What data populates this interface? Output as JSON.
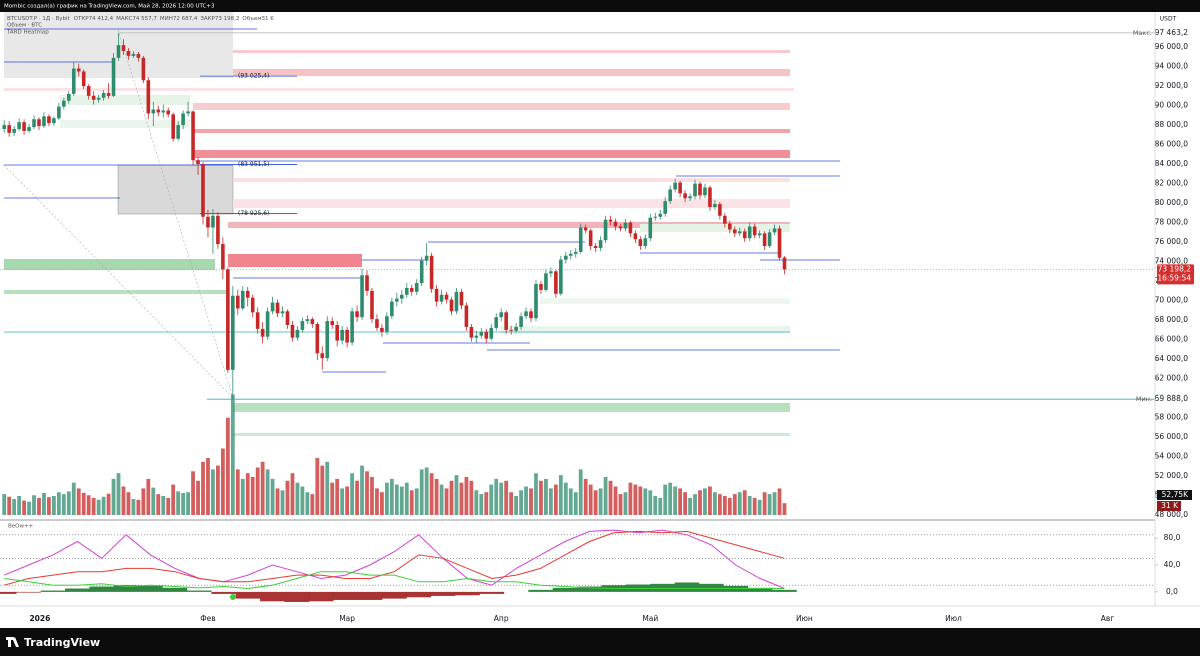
{
  "header": {
    "credit": "Mombic создал(а) график на TradingView.com, Май 28, 2026 12:00 UTC+3",
    "symbol": "BTCUSDT.P · 1Д · Bybit",
    "ohlc": [
      {
        "label": "ОТКР",
        "value": "74 412,4"
      },
      {
        "label": "МАКС",
        "value": "74 557,7"
      },
      {
        "label": "МИН",
        "value": "72 687,4"
      },
      {
        "label": "ЗАКР",
        "value": "73 198,2"
      },
      {
        "label": "Объем",
        "value": "31 K"
      }
    ],
    "indicators": [
      "Объем · BTC",
      "TARD Heatmap"
    ],
    "brand": "TradingView"
  },
  "chart_data": {
    "type": "candlestick",
    "currency": "USDT",
    "up_color": "#2e8b6e",
    "down_color": "#c62828",
    "ylim": [
      47500,
      99600
    ],
    "yticks": [
      {
        "value": 48000,
        "label": "48 000,0"
      },
      {
        "value": 50000,
        "label": "50 000,0"
      },
      {
        "value": 52000,
        "label": "52 000,0"
      },
      {
        "value": 54000,
        "label": "54 000,0"
      },
      {
        "value": 56000,
        "label": "56 000,0"
      },
      {
        "value": 58000,
        "label": "58 000,0"
      },
      {
        "value": 60000,
        "label": "60 000,0"
      },
      {
        "value": 62000,
        "label": "62 000,0"
      },
      {
        "value": 64000,
        "label": "64 000,0"
      },
      {
        "value": 66000,
        "label": "66 000,0"
      },
      {
        "value": 68000,
        "label": "68 000,0"
      },
      {
        "value": 70000,
        "label": "70 000,0"
      },
      {
        "value": 72000,
        "label": "72 000,0"
      },
      {
        "value": 74000,
        "label": "74 000,0"
      },
      {
        "value": 76000,
        "label": "76 000,0"
      },
      {
        "value": 78000,
        "label": "78 000,0"
      },
      {
        "value": 80000,
        "label": "80 000,0"
      },
      {
        "value": 82000,
        "label": "82 000,0"
      },
      {
        "value": 84000,
        "label": "84 000,0"
      },
      {
        "value": 86000,
        "label": "86 000,0"
      },
      {
        "value": 88000,
        "label": "88 000,0"
      },
      {
        "value": 90000,
        "label": "90 000,0"
      },
      {
        "value": 92000,
        "label": "92 000,0"
      },
      {
        "value": 94000,
        "label": "94 000,0"
      },
      {
        "value": 96000,
        "label": "96 000,0"
      }
    ],
    "time_labels": [
      "2026",
      "Фев",
      "Мар",
      "Апр",
      "Май",
      "Июн",
      "Июл",
      "Авг"
    ],
    "levels": [
      {
        "value": 93025.4,
        "label": "(93 025,4)"
      },
      {
        "value": 83951.5,
        "label": "(83 951,5)"
      },
      {
        "value": 78925.6,
        "label": "(78 925,6)"
      }
    ],
    "extremes": [
      {
        "name": "Макс.",
        "value": 97463.2,
        "label": "97 463,2"
      },
      {
        "name": "Мин.",
        "value": 59888,
        "label": "59 888,0"
      }
    ],
    "last_price": {
      "value": 73198.2,
      "label": "73 198,2",
      "countdown": "16:59:54"
    },
    "volume_ma_label": "52,75K",
    "volume_label": "31 K",
    "candles": [
      [
        87600,
        88500,
        87200,
        88000
      ],
      [
        88000,
        88400,
        86800,
        87200
      ],
      [
        87200,
        87900,
        86900,
        87600
      ],
      [
        87600,
        88700,
        87400,
        88300
      ],
      [
        88300,
        88600,
        87000,
        87400
      ],
      [
        87400,
        88100,
        87200,
        87800
      ],
      [
        87800,
        89000,
        87600,
        88600
      ],
      [
        88600,
        88800,
        87500,
        87900
      ],
      [
        87900,
        89300,
        87700,
        88900
      ],
      [
        88900,
        89100,
        87900,
        88200
      ],
      [
        88200,
        88900,
        87900,
        88700
      ],
      [
        88700,
        90300,
        88500,
        89900
      ],
      [
        89900,
        90800,
        89600,
        90500
      ],
      [
        90500,
        91500,
        90200,
        91200
      ],
      [
        91200,
        94500,
        91000,
        93800
      ],
      [
        93800,
        94300,
        93000,
        93500
      ],
      [
        93500,
        93700,
        91700,
        92000
      ],
      [
        92000,
        92200,
        90600,
        91000
      ],
      [
        91000,
        91500,
        90100,
        90600
      ],
      [
        90600,
        91100,
        90300,
        90800
      ],
      [
        90800,
        91600,
        90500,
        91300
      ],
      [
        91300,
        92300,
        90700,
        91000
      ],
      [
        91000,
        95400,
        90900,
        94900
      ],
      [
        94900,
        97463.2,
        94600,
        96200
      ],
      [
        96200,
        96800,
        95200,
        95600
      ],
      [
        95600,
        95900,
        94700,
        95100
      ],
      [
        95100,
        95600,
        94900,
        95300
      ],
      [
        95300,
        95500,
        94500,
        94900
      ],
      [
        94900,
        95100,
        92300,
        92600
      ],
      [
        92600,
        92900,
        88600,
        89200
      ],
      [
        89200,
        90400,
        87900,
        89600
      ],
      [
        89600,
        90000,
        88900,
        89300
      ],
      [
        89300,
        90100,
        88800,
        89500
      ],
      [
        89500,
        89800,
        88800,
        89100
      ],
      [
        89100,
        89300,
        86300,
        86600
      ],
      [
        86600,
        88400,
        86400,
        88000
      ],
      [
        88000,
        89500,
        87600,
        89200
      ],
      [
        89200,
        90400,
        88900,
        89400
      ],
      [
        89400,
        89500,
        83900,
        84400
      ],
      [
        84400,
        84700,
        82900,
        84000
      ],
      [
        84000,
        84200,
        77800,
        78600
      ],
      [
        78600,
        79300,
        76500,
        77500
      ],
      [
        77500,
        79400,
        74800,
        78700
      ],
      [
        78700,
        79100,
        75300,
        75800
      ],
      [
        75800,
        76500,
        72200,
        73200
      ],
      [
        73200,
        73400,
        62600,
        62900
      ],
      [
        62900,
        71500,
        59888,
        70500
      ],
      [
        70500,
        71100,
        68500,
        69200
      ],
      [
        69200,
        71500,
        69000,
        71000
      ],
      [
        71000,
        71400,
        69400,
        70300
      ],
      [
        70300,
        70600,
        68300,
        68800
      ],
      [
        68800,
        69300,
        66600,
        67100
      ],
      [
        67100,
        67800,
        65600,
        66300
      ],
      [
        66300,
        69300,
        66000,
        68900
      ],
      [
        68900,
        70400,
        68600,
        69800
      ],
      [
        69800,
        70100,
        68300,
        68700
      ],
      [
        68700,
        69400,
        68300,
        68900
      ],
      [
        68900,
        69100,
        67100,
        67500
      ],
      [
        67500,
        67900,
        65800,
        66200
      ],
      [
        66200,
        67400,
        65900,
        67000
      ],
      [
        67000,
        68300,
        66700,
        67900
      ],
      [
        67900,
        68500,
        67600,
        68100
      ],
      [
        68100,
        68300,
        67200,
        67600
      ],
      [
        67600,
        67800,
        63900,
        64600
      ],
      [
        64600,
        65300,
        62900,
        64100
      ],
      [
        64100,
        68400,
        63800,
        67900
      ],
      [
        67900,
        68300,
        67100,
        67500
      ],
      [
        67500,
        67900,
        65300,
        65900
      ],
      [
        65900,
        67400,
        65500,
        67000
      ],
      [
        67000,
        67300,
        65200,
        65700
      ],
      [
        65700,
        69300,
        65400,
        68900
      ],
      [
        68900,
        69500,
        67800,
        68300
      ],
      [
        68300,
        73300,
        68000,
        72600
      ],
      [
        72600,
        73100,
        70500,
        71000
      ],
      [
        71000,
        71300,
        67700,
        68100
      ],
      [
        68100,
        68600,
        66900,
        67200
      ],
      [
        67200,
        67600,
        66300,
        66800
      ],
      [
        66800,
        68800,
        66500,
        68400
      ],
      [
        68400,
        70300,
        68100,
        69900
      ],
      [
        69900,
        70800,
        69400,
        70200
      ],
      [
        70200,
        71100,
        69700,
        70600
      ],
      [
        70600,
        71800,
        70300,
        71300
      ],
      [
        71300,
        71600,
        70500,
        70900
      ],
      [
        70900,
        72200,
        70600,
        71800
      ],
      [
        71800,
        74500,
        71500,
        74100
      ],
      [
        74100,
        75900,
        73600,
        74600
      ],
      [
        74600,
        74900,
        70800,
        71200
      ],
      [
        71200,
        71600,
        69400,
        69900
      ],
      [
        69900,
        71100,
        69600,
        70600
      ],
      [
        70600,
        70900,
        69700,
        70100
      ],
      [
        70100,
        70400,
        68500,
        68900
      ],
      [
        68900,
        71300,
        68600,
        70900
      ],
      [
        70900,
        71200,
        69100,
        69500
      ],
      [
        69500,
        69800,
        66900,
        67300
      ],
      [
        67300,
        67600,
        65800,
        66200
      ],
      [
        66200,
        66900,
        65700,
        66400
      ],
      [
        66400,
        67200,
        66100,
        66800
      ],
      [
        66800,
        67100,
        65600,
        66100
      ],
      [
        66100,
        67600,
        65900,
        67200
      ],
      [
        67200,
        68700,
        66900,
        68300
      ],
      [
        68300,
        69200,
        67900,
        68800
      ],
      [
        68800,
        69000,
        66600,
        67000
      ],
      [
        67000,
        67400,
        66500,
        66900
      ],
      [
        66900,
        67700,
        66700,
        67300
      ],
      [
        67300,
        68800,
        67000,
        68400
      ],
      [
        68400,
        69300,
        68100,
        68900
      ],
      [
        68900,
        69200,
        67800,
        68200
      ],
      [
        68200,
        72100,
        67900,
        71700
      ],
      [
        71700,
        72000,
        70700,
        71100
      ],
      [
        71100,
        73200,
        70900,
        72800
      ],
      [
        72800,
        73400,
        72400,
        73000
      ],
      [
        73000,
        73200,
        70300,
        70700
      ],
      [
        70700,
        74600,
        70500,
        74200
      ],
      [
        74200,
        75000,
        73800,
        74600
      ],
      [
        74600,
        75200,
        74200,
        74800
      ],
      [
        74800,
        75400,
        74400,
        75000
      ],
      [
        75000,
        77900,
        74800,
        77500
      ],
      [
        77500,
        77800,
        76900,
        77200
      ],
      [
        77200,
        77400,
        75200,
        75600
      ],
      [
        75600,
        75900,
        75000,
        75400
      ],
      [
        75400,
        76600,
        75100,
        76200
      ],
      [
        76200,
        78700,
        75900,
        78300
      ],
      [
        78300,
        78700,
        77700,
        78100
      ],
      [
        78100,
        78400,
        77200,
        77600
      ],
      [
        77600,
        77900,
        77100,
        77400
      ],
      [
        77400,
        78400,
        77100,
        78000
      ],
      [
        78000,
        78200,
        76500,
        76900
      ],
      [
        76900,
        77200,
        75900,
        76300
      ],
      [
        76300,
        76600,
        75200,
        75600
      ],
      [
        75600,
        76800,
        75300,
        76400
      ],
      [
        76400,
        78900,
        76100,
        78500
      ],
      [
        78500,
        79000,
        78200,
        78600
      ],
      [
        78600,
        79300,
        78300,
        78900
      ],
      [
        78900,
        80600,
        78600,
        80200
      ],
      [
        80200,
        81800,
        79900,
        81400
      ],
      [
        81400,
        82500,
        81100,
        82100
      ],
      [
        82100,
        82300,
        80600,
        81000
      ],
      [
        81000,
        81300,
        80100,
        80500
      ],
      [
        80500,
        81000,
        80200,
        80700
      ],
      [
        80700,
        82400,
        80400,
        82000
      ],
      [
        82000,
        82200,
        80400,
        80800
      ],
      [
        80800,
        82000,
        80500,
        81600
      ],
      [
        81600,
        81800,
        79200,
        79600
      ],
      [
        79600,
        80300,
        79300,
        79900
      ],
      [
        79900,
        80100,
        78300,
        78700
      ],
      [
        78700,
        79000,
        77500,
        77900
      ],
      [
        77900,
        78200,
        76900,
        77300
      ],
      [
        77300,
        77600,
        76500,
        76900
      ],
      [
        76900,
        77500,
        76600,
        77100
      ],
      [
        77100,
        77400,
        76000,
        76400
      ],
      [
        76400,
        78000,
        76100,
        77600
      ],
      [
        77600,
        77900,
        76400,
        76700
      ],
      [
        76700,
        77200,
        76400,
        76900
      ],
      [
        76900,
        77100,
        75200,
        75600
      ],
      [
        75600,
        77300,
        75400,
        77000
      ],
      [
        77000,
        77800,
        76700,
        77400
      ],
      [
        77400,
        77700,
        74100,
        74400
      ],
      [
        74412.4,
        74557.7,
        72687.4,
        73198.2
      ]
    ],
    "volumes": [
      55,
      48,
      42,
      50,
      38,
      35,
      52,
      45,
      58,
      47,
      50,
      60,
      55,
      62,
      85,
      70,
      58,
      52,
      45,
      40,
      48,
      56,
      95,
      110,
      75,
      60,
      42,
      40,
      70,
      95,
      72,
      55,
      50,
      45,
      80,
      62,
      58,
      60,
      115,
      90,
      140,
      150,
      120,
      130,
      175,
      256,
      317,
      120,
      95,
      110,
      100,
      125,
      140,
      120,
      95,
      70,
      65,
      90,
      110,
      85,
      75,
      60,
      55,
      150,
      130,
      140,
      85,
      95,
      70,
      75,
      110,
      90,
      130,
      115,
      100,
      70,
      60,
      85,
      95,
      80,
      75,
      85,
      65,
      70,
      120,
      125,
      110,
      95,
      80,
      70,
      90,
      105,
      85,
      100,
      90,
      65,
      55,
      60,
      80,
      95,
      85,
      90,
      60,
      50,
      65,
      75,
      70,
      110,
      90,
      95,
      70,
      80,
      105,
      85,
      70,
      60,
      120,
      95,
      80,
      65,
      70,
      100,
      90,
      75,
      55,
      60,
      85,
      80,
      75,
      70,
      65,
      50,
      45,
      80,
      85,
      75,
      70,
      60,
      45,
      55,
      65,
      70,
      75,
      60,
      55,
      50,
      45,
      55,
      60,
      65,
      50,
      45,
      40,
      60,
      55,
      60,
      70,
      31
    ],
    "oscillator": {
      "name": "BeOw++",
      "ylim": [
        -21,
        107
      ],
      "yticks": [
        {
          "value": 80,
          "label": "80,0"
        },
        {
          "value": 40,
          "label": "40,0"
        },
        {
          "value": 0,
          "label": "0,0"
        }
      ],
      "levels": [
        85,
        50,
        10
      ],
      "series": [
        {
          "color": "#d63fd6",
          "values": [
            25,
            40,
            55,
            75,
            50,
            85,
            55,
            35,
            20,
            15,
            25,
            40,
            30,
            20,
            25,
            40,
            60,
            85,
            50,
            20,
            10,
            35,
            55,
            75,
            90,
            92,
            88,
            92,
            85,
            70,
            40,
            20,
            5
          ]
        },
        {
          "color": "#e53935",
          "values": [
            10,
            20,
            25,
            30,
            30,
            35,
            35,
            30,
            20,
            15,
            15,
            20,
            25,
            25,
            20,
            20,
            30,
            55,
            50,
            35,
            20,
            25,
            35,
            55,
            75,
            88,
            90,
            88,
            90,
            80,
            70,
            60,
            50
          ]
        },
        {
          "color": "#3ccf3c",
          "values": [
            20,
            15,
            10,
            10,
            12,
            8,
            10,
            8,
            6,
            8,
            5,
            10,
            20,
            30,
            30,
            25,
            25,
            15,
            15,
            20,
            15,
            15,
            10,
            8,
            6,
            5,
            5,
            5,
            5,
            5,
            5,
            5,
            5
          ]
        }
      ],
      "histogram": [
        -3,
        -1,
        2,
        5,
        8,
        10,
        9,
        6,
        2,
        -3,
        -10,
        -14,
        -15,
        -14,
        -12,
        -12,
        -10,
        -8,
        -6,
        -5,
        -3,
        0,
        3,
        6,
        8,
        10,
        11,
        12,
        14,
        12,
        9,
        6,
        3
      ],
      "pos_color": "#1b7a2e",
      "neg_color": "#a11d1d"
    }
  }
}
